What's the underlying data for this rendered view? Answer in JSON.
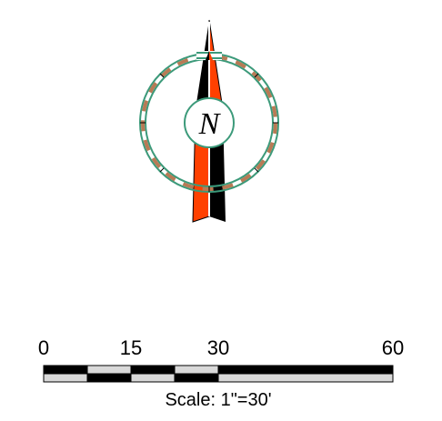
{
  "north_arrow": {
    "letter": "N",
    "icon": "compass-north-arrow-icon",
    "colors": {
      "needle_dark": "#000000",
      "needle_accent": "#ff4000",
      "ring_stroke": "#3c9a7a",
      "ring_dash": "#b87a55"
    }
  },
  "scale": {
    "ticks": [
      {
        "label": "0",
        "value": 0
      },
      {
        "label": "15",
        "value": 15
      },
      {
        "label": "30",
        "value": 30
      },
      {
        "label": "60",
        "value": 60
      }
    ],
    "max_value": 60,
    "caption": "Scale: 1\"=30'",
    "colors": {
      "fill_dark": "#000000",
      "fill_light": "#d9d9d9"
    }
  }
}
